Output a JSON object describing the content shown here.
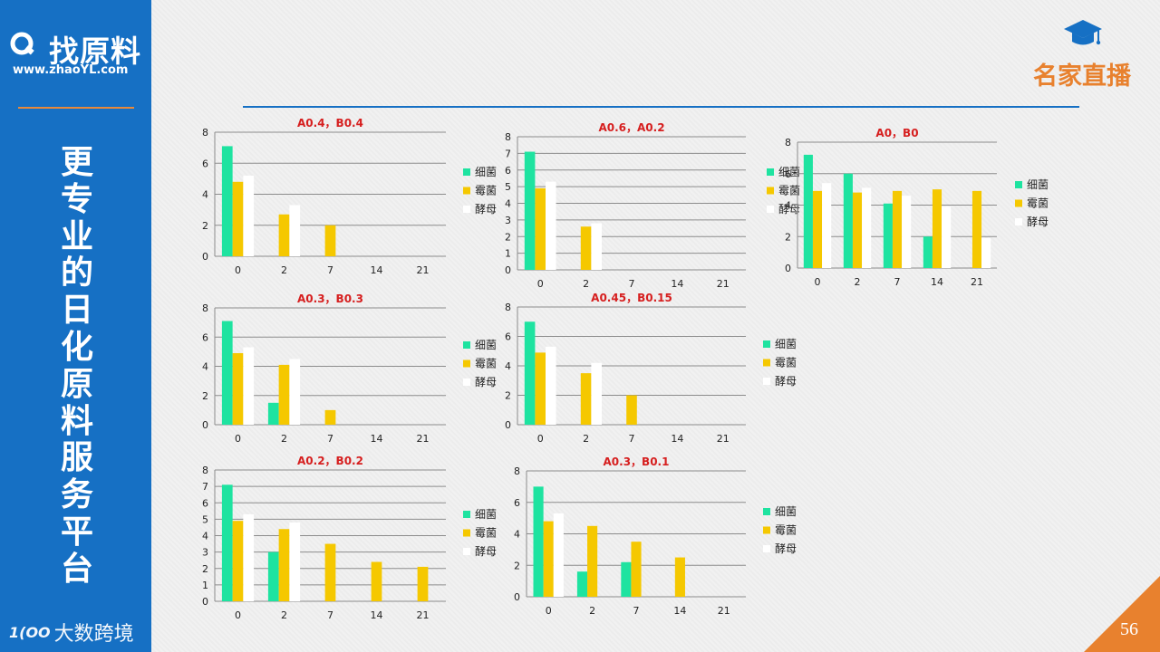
{
  "sidebar": {
    "logo_text": "找原料",
    "logo_url": "www.zhaoYL.com",
    "slogan": [
      "更",
      "专",
      "业",
      "的",
      "日",
      "化",
      "原",
      "料",
      "服",
      "务",
      "平",
      "台"
    ],
    "footer_text": "大数跨境",
    "footer_mark": "1(OO"
  },
  "brand": {
    "text": "名家直播",
    "icon": "graduation-cap-icon"
  },
  "page_number": "56",
  "colors": {
    "sidebar": "#1670c4",
    "accent": "#e8812e",
    "bacteria": "#1ee3a0",
    "mold": "#f5c800",
    "yeast": "#ffffff",
    "title": "#d61f1f"
  },
  "chart_data": [
    {
      "type": "bar",
      "title": "A0.4，B0.4",
      "categories": [
        "0",
        "2",
        "7",
        "14",
        "21"
      ],
      "ylim": [
        0,
        8
      ],
      "yticks": [
        0,
        2,
        4,
        6,
        8
      ],
      "series": [
        {
          "name": "细菌",
          "values": [
            7.1,
            null,
            null,
            null,
            null
          ]
        },
        {
          "name": "霉菌",
          "values": [
            4.8,
            2.7,
            2.0,
            null,
            null
          ]
        },
        {
          "name": "酵母",
          "values": [
            5.2,
            3.3,
            null,
            null,
            null
          ]
        }
      ]
    },
    {
      "type": "bar",
      "title": "A0.6，A0.2",
      "categories": [
        "0",
        "2",
        "7",
        "14",
        "21"
      ],
      "ylim": [
        0,
        8
      ],
      "yticks": [
        0,
        1,
        2,
        3,
        4,
        5,
        6,
        7,
        8
      ],
      "series": [
        {
          "name": "细菌",
          "values": [
            7.1,
            null,
            null,
            null,
            null
          ]
        },
        {
          "name": "霉菌",
          "values": [
            4.9,
            2.6,
            null,
            null,
            null
          ]
        },
        {
          "name": "酵母",
          "values": [
            5.3,
            2.8,
            null,
            null,
            null
          ]
        }
      ]
    },
    {
      "type": "bar",
      "title": "A0，B0",
      "categories": [
        "0",
        "2",
        "7",
        "14",
        "21"
      ],
      "ylim": [
        0,
        8
      ],
      "yticks": [
        0,
        2,
        4,
        6,
        8
      ],
      "series": [
        {
          "name": "细菌",
          "values": [
            7.2,
            6.0,
            4.1,
            2.0,
            null
          ]
        },
        {
          "name": "霉菌",
          "values": [
            4.9,
            4.8,
            4.9,
            5.0,
            4.9
          ]
        },
        {
          "name": "酵母",
          "values": [
            5.4,
            5.1,
            4.6,
            3.9,
            1.9
          ]
        }
      ]
    },
    {
      "type": "bar",
      "title": "A0.3，B0.3",
      "categories": [
        "0",
        "2",
        "7",
        "14",
        "21"
      ],
      "ylim": [
        0,
        8
      ],
      "yticks": [
        0,
        2,
        4,
        6,
        8
      ],
      "series": [
        {
          "name": "细菌",
          "values": [
            7.1,
            1.5,
            null,
            null,
            null
          ]
        },
        {
          "name": "霉菌",
          "values": [
            4.9,
            4.1,
            1.0,
            null,
            null
          ]
        },
        {
          "name": "酵母",
          "values": [
            5.3,
            4.5,
            null,
            null,
            null
          ]
        }
      ]
    },
    {
      "type": "bar",
      "title": "A0.45，B0.15",
      "categories": [
        "0",
        "2",
        "7",
        "14",
        "21"
      ],
      "ylim": [
        0,
        8
      ],
      "yticks": [
        0,
        2,
        4,
        6,
        8
      ],
      "series": [
        {
          "name": "细菌",
          "values": [
            7.0,
            null,
            null,
            null,
            null
          ]
        },
        {
          "name": "霉菌",
          "values": [
            4.9,
            3.5,
            2.0,
            null,
            null
          ]
        },
        {
          "name": "酵母",
          "values": [
            5.3,
            4.2,
            null,
            null,
            null
          ]
        }
      ]
    },
    {
      "type": "bar",
      "title": "A0.2，B0.2",
      "categories": [
        "0",
        "2",
        "7",
        "14",
        "21"
      ],
      "ylim": [
        0,
        8
      ],
      "yticks": [
        0,
        1,
        2,
        3,
        4,
        5,
        6,
        7,
        8
      ],
      "series": [
        {
          "name": "细菌",
          "values": [
            7.1,
            3.0,
            null,
            null,
            null
          ]
        },
        {
          "name": "霉菌",
          "values": [
            4.9,
            4.4,
            3.5,
            2.4,
            2.1
          ]
        },
        {
          "name": "酵母",
          "values": [
            5.3,
            4.8,
            null,
            null,
            null
          ]
        }
      ]
    },
    {
      "type": "bar",
      "title": "A0.3，B0.1",
      "categories": [
        "0",
        "2",
        "7",
        "14",
        "21"
      ],
      "ylim": [
        0,
        8
      ],
      "yticks": [
        0,
        2,
        4,
        6,
        8
      ],
      "series": [
        {
          "name": "细菌",
          "values": [
            7.0,
            1.6,
            2.2,
            null,
            null
          ]
        },
        {
          "name": "霉菌",
          "values": [
            4.8,
            4.5,
            3.5,
            2.5,
            null
          ]
        },
        {
          "name": "酵母",
          "values": [
            5.3,
            null,
            null,
            null,
            null
          ]
        }
      ]
    }
  ]
}
